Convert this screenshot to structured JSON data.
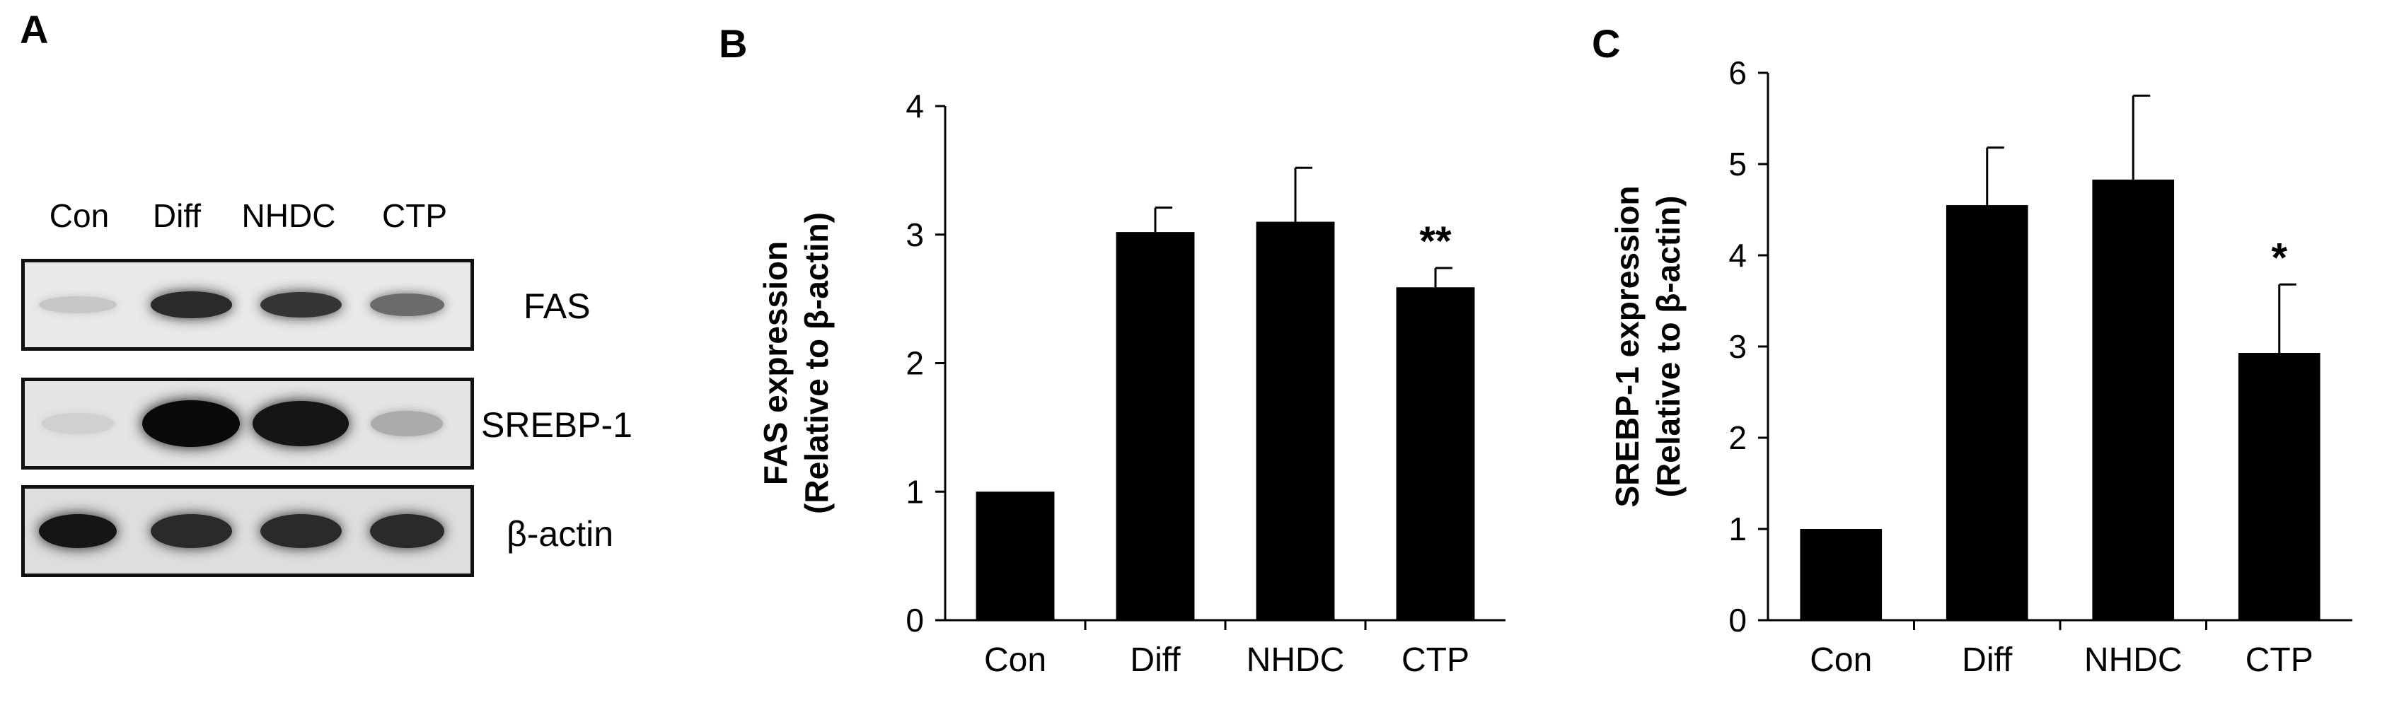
{
  "panels": {
    "a": {
      "letter": "A"
    },
    "b": {
      "letter": "B"
    },
    "c": {
      "letter": "C"
    }
  },
  "western_blot": {
    "lanes": [
      "Con",
      "Diff",
      "NHDC",
      "CTP"
    ],
    "proteins": [
      "FAS",
      "SREBP-1",
      "β-actin"
    ],
    "band_intensity": [
      [
        0.12,
        0.85,
        0.8,
        0.55
      ],
      [
        0.08,
        1.0,
        0.95,
        0.25
      ],
      [
        0.95,
        0.85,
        0.85,
        0.85
      ]
    ]
  },
  "chart_data": [
    {
      "type": "bar",
      "panel": "B",
      "categories": [
        "Con",
        "Diff",
        "NHDC",
        "CTP"
      ],
      "values": [
        1.0,
        3.02,
        3.1,
        2.59
      ],
      "errors": [
        0.01,
        0.19,
        0.42,
        0.15
      ],
      "annotations": [
        "",
        "",
        "",
        "**"
      ],
      "ylabel_line1": "FAS expression",
      "ylabel_line2": "(Relative to β-actin)",
      "xlabel": "",
      "ylim": [
        0,
        4
      ],
      "yticks": [
        "0",
        "1",
        "2",
        "3",
        "4"
      ],
      "grid": false,
      "bar_color": "#000000"
    },
    {
      "type": "bar",
      "panel": "C",
      "categories": [
        "Con",
        "Diff",
        "NHDC",
        "CTP"
      ],
      "values": [
        1.0,
        4.55,
        4.83,
        2.93
      ],
      "errors": [
        0.01,
        0.63,
        0.92,
        0.75
      ],
      "annotations": [
        "",
        "",
        "",
        "*"
      ],
      "ylabel_line1": "SREBP-1  expression",
      "ylabel_line2": "(Relative to β-actin)",
      "xlabel": "",
      "ylim": [
        0,
        6
      ],
      "yticks": [
        "0",
        "1",
        "2",
        "3",
        "4",
        "5",
        "6"
      ],
      "grid": false,
      "bar_color": "#000000"
    }
  ]
}
